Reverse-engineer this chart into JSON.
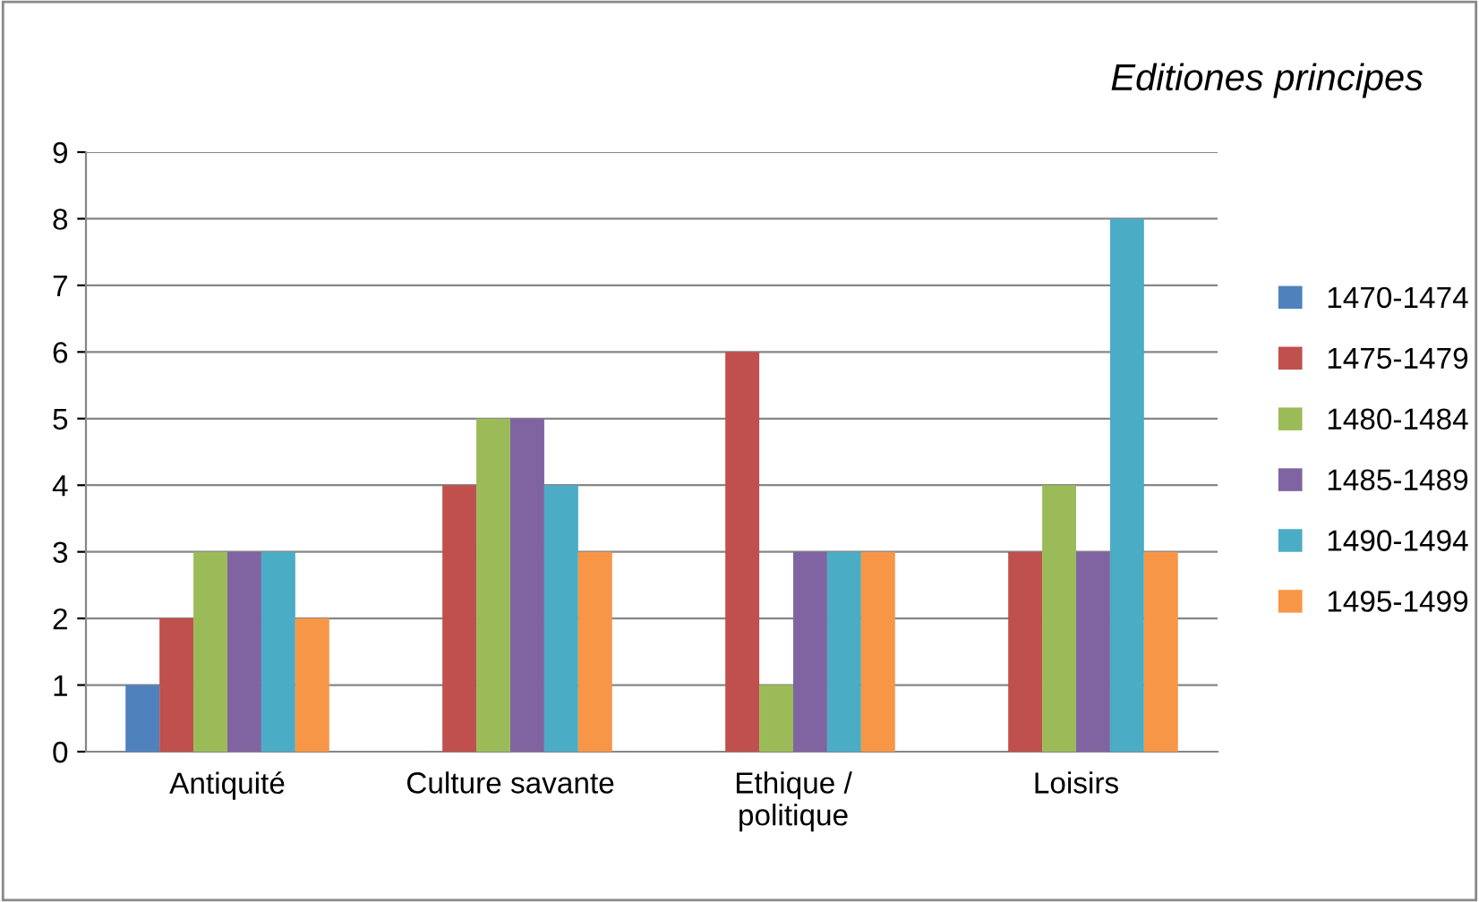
{
  "chart_data": {
    "type": "bar",
    "title": "Editiones principes",
    "categories": [
      "Antiquité",
      "Culture savante",
      "Ethique /\npolitique",
      "Loisirs"
    ],
    "series": [
      {
        "name": "1470-1474",
        "color": "#4f81bd",
        "values": [
          1,
          0,
          0,
          0
        ]
      },
      {
        "name": "1475-1479",
        "color": "#c0504d",
        "values": [
          2,
          4,
          6,
          3
        ]
      },
      {
        "name": "1480-1484",
        "color": "#9bbb59",
        "values": [
          3,
          5,
          1,
          4
        ]
      },
      {
        "name": "1485-1489",
        "color": "#8064a2",
        "values": [
          3,
          5,
          3,
          3
        ]
      },
      {
        "name": "1490-1494",
        "color": "#4bacc6",
        "values": [
          3,
          4,
          3,
          8
        ]
      },
      {
        "name": "1495-1499",
        "color": "#f79646",
        "values": [
          2,
          3,
          3,
          3
        ]
      }
    ],
    "ylim": [
      0,
      9
    ],
    "yticks": [
      0,
      1,
      2,
      3,
      4,
      5,
      6,
      7,
      8,
      9
    ],
    "grid": "y",
    "legend": "right"
  }
}
